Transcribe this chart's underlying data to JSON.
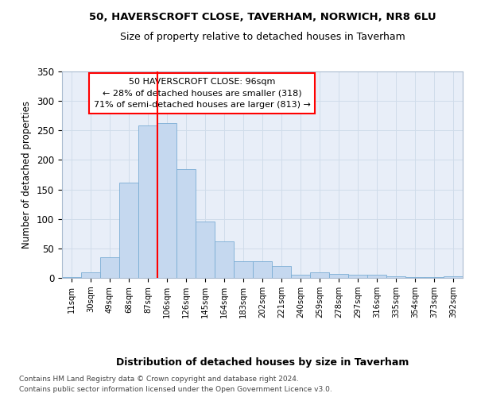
{
  "title1": "50, HAVERSCROFT CLOSE, TAVERHAM, NORWICH, NR8 6LU",
  "title2": "Size of property relative to detached houses in Taverham",
  "xlabel": "Distribution of detached houses by size in Taverham",
  "ylabel": "Number of detached properties",
  "categories": [
    "11sqm",
    "30sqm",
    "49sqm",
    "68sqm",
    "87sqm",
    "106sqm",
    "126sqm",
    "145sqm",
    "164sqm",
    "183sqm",
    "202sqm",
    "221sqm",
    "240sqm",
    "259sqm",
    "278sqm",
    "297sqm",
    "316sqm",
    "335sqm",
    "354sqm",
    "373sqm",
    "392sqm"
  ],
  "values": [
    2,
    10,
    35,
    162,
    258,
    262,
    184,
    96,
    62,
    28,
    28,
    20,
    5,
    10,
    7,
    6,
    5,
    3,
    1,
    1,
    3
  ],
  "bar_color": "#c5d8ef",
  "bar_edge_color": "#7aadd4",
  "grid_color": "#d0dcea",
  "bg_color": "#e8eef8",
  "vline_color": "red",
  "vline_bar_index": 4,
  "annotation_text": "50 HAVERSCROFT CLOSE: 96sqm\n← 28% of detached houses are smaller (318)\n71% of semi-detached houses are larger (813) →",
  "annotation_box_color": "white",
  "annotation_box_edge": "red",
  "footer1": "Contains HM Land Registry data © Crown copyright and database right 2024.",
  "footer2": "Contains public sector information licensed under the Open Government Licence v3.0.",
  "ylim": [
    0,
    350
  ],
  "yticks": [
    0,
    50,
    100,
    150,
    200,
    250,
    300,
    350
  ]
}
